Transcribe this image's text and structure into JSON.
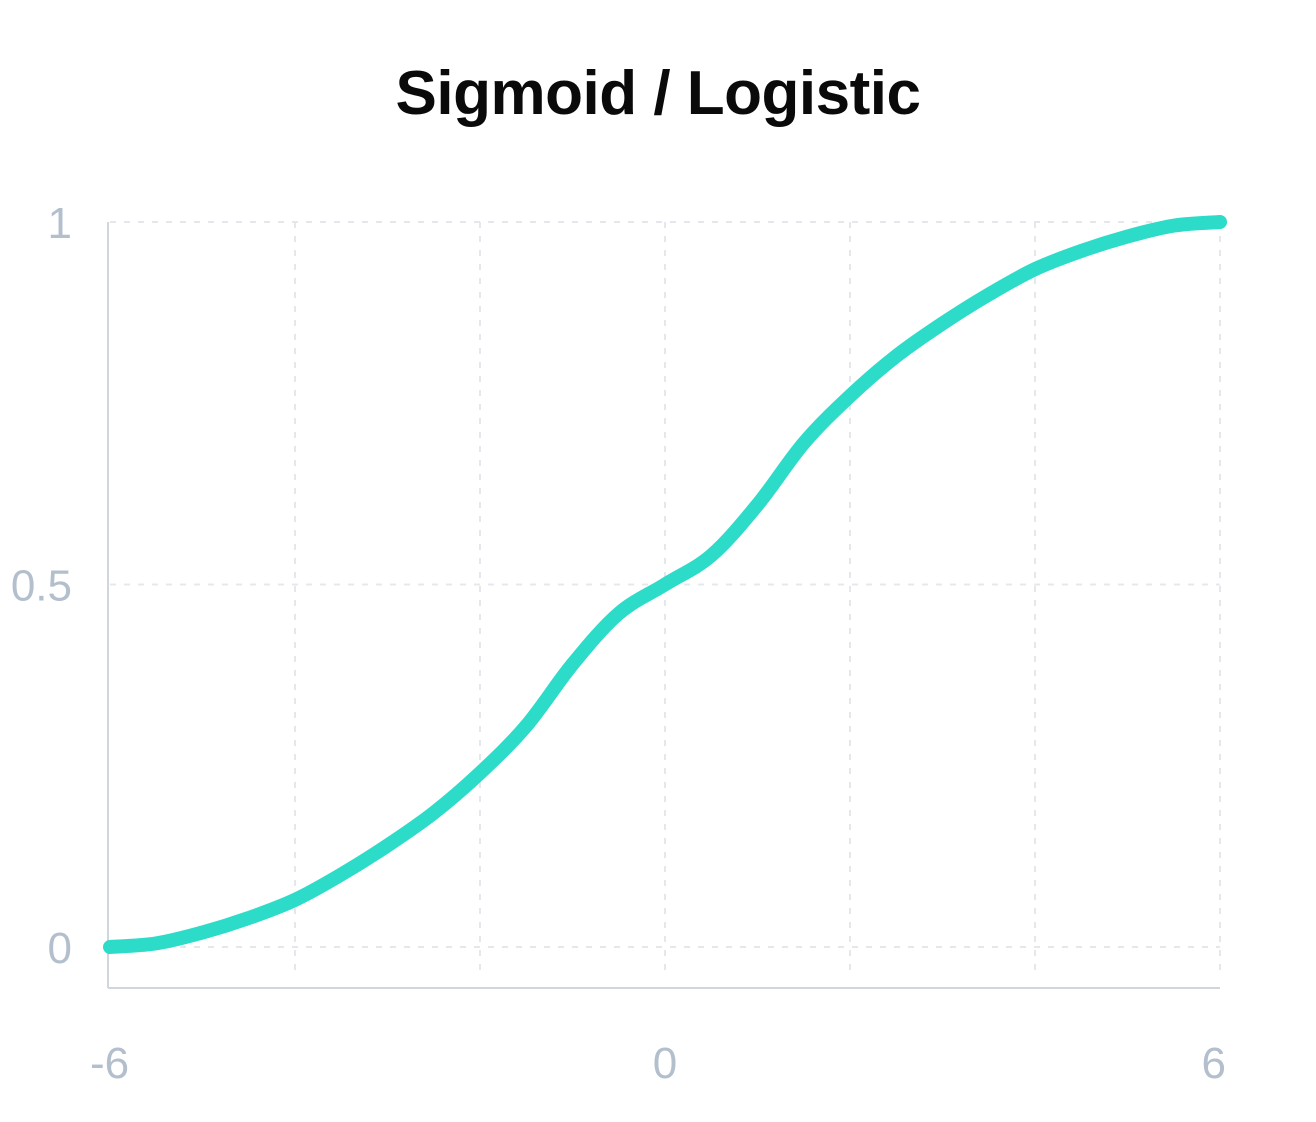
{
  "chart_data": {
    "type": "line",
    "title": "Sigmoid / Logistic",
    "xlabel": "",
    "ylabel": "",
    "xlim": [
      -6,
      6
    ],
    "ylim": [
      0,
      1
    ],
    "x_ticks": [
      {
        "value": -6,
        "label": "-6"
      },
      {
        "value": 0,
        "label": "0"
      },
      {
        "value": 6,
        "label": "6"
      }
    ],
    "y_ticks": [
      {
        "value": 0,
        "label": "0"
      },
      {
        "value": 0.5,
        "label": "0.5"
      },
      {
        "value": 1,
        "label": "1"
      }
    ],
    "x_gridlines": [
      -6,
      -4,
      -2,
      0,
      2,
      4,
      6
    ],
    "y_gridlines": [
      0,
      0.5,
      1
    ],
    "grid": true,
    "series": [
      {
        "color": "#2ddbc9",
        "x": [
          -6,
          -5.5,
          -5,
          -4.5,
          -4,
          -3.5,
          -3,
          -2.5,
          -2,
          -1.5,
          -1,
          -0.5,
          0,
          0.5,
          1,
          1.5,
          2,
          2.5,
          3,
          3.5,
          4,
          4.5,
          5,
          5.5,
          6
        ],
        "y": [
          0.0,
          0.005,
          0.02,
          0.04,
          0.065,
          0.1,
          0.14,
          0.185,
          0.24,
          0.305,
          0.39,
          0.46,
          0.5,
          0.54,
          0.61,
          0.695,
          0.76,
          0.815,
          0.86,
          0.9,
          0.935,
          0.96,
          0.98,
          0.995,
          1.0
        ]
      }
    ]
  }
}
